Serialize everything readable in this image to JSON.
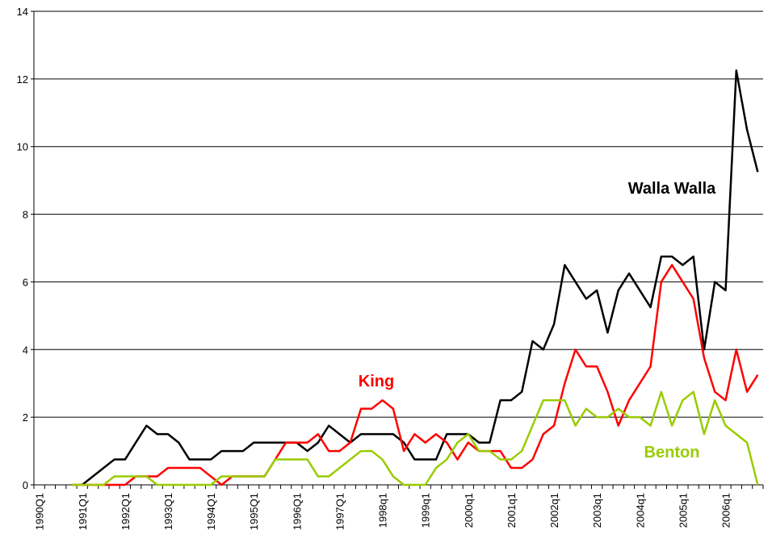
{
  "chart_data": {
    "type": "line",
    "categories": [
      "1990Q1",
      null,
      null,
      null,
      "1991Q1",
      null,
      null,
      null,
      "1992Q1",
      null,
      null,
      null,
      "1993Q1",
      null,
      null,
      null,
      "1994Q1",
      null,
      null,
      null,
      "1995Q1",
      null,
      null,
      null,
      "1996Q1",
      null,
      null,
      null,
      "1997Q1",
      null,
      null,
      null,
      "1998q1",
      null,
      null,
      null,
      "1999q1",
      null,
      null,
      null,
      "2000q1",
      null,
      null,
      null,
      "2001q1",
      null,
      null,
      null,
      "2002q1",
      null,
      null,
      null,
      "2003q1",
      null,
      null,
      null,
      "2004q1",
      null,
      null,
      null,
      "2005q1",
      null,
      null,
      null,
      "2006q1",
      null,
      null,
      null
    ],
    "series": [
      {
        "name": "Walla Walla",
        "color": "#000000",
        "values": [
          null,
          null,
          null,
          null,
          0,
          0.25,
          0.5,
          0.75,
          0.75,
          1.25,
          1.75,
          1.5,
          1.5,
          1.25,
          0.75,
          0.75,
          0.75,
          1.0,
          1.0,
          1.0,
          1.25,
          1.25,
          1.25,
          1.25,
          1.25,
          1.0,
          1.25,
          1.75,
          1.5,
          1.25,
          1.5,
          1.5,
          1.5,
          1.5,
          1.25,
          0.75,
          0.75,
          0.75,
          1.5,
          1.5,
          1.5,
          1.25,
          1.25,
          2.5,
          2.5,
          2.75,
          4.25,
          4.0,
          4.75,
          6.5,
          6.0,
          5.5,
          5.75,
          4.5,
          5.75,
          6.25,
          5.75,
          5.25,
          6.75,
          6.75,
          6.5,
          6.75,
          4.0,
          6.0,
          5.75,
          12.25,
          10.5,
          9.25
        ]
      },
      {
        "name": "King",
        "color": "#ff0000",
        "values": [
          null,
          null,
          null,
          0,
          0,
          0,
          0,
          0,
          0,
          0.25,
          0.25,
          0.25,
          0.5,
          0.5,
          0.5,
          0.5,
          0.25,
          0,
          0.25,
          0.25,
          0.25,
          0.25,
          0.75,
          1.25,
          1.25,
          1.25,
          1.5,
          1.0,
          1.0,
          1.25,
          2.25,
          2.25,
          2.5,
          2.25,
          1.0,
          1.5,
          1.25,
          1.5,
          1.25,
          0.75,
          1.25,
          1.0,
          1.0,
          1.0,
          0.5,
          0.5,
          0.75,
          1.5,
          1.75,
          3.0,
          4.0,
          3.5,
          3.5,
          2.75,
          1.75,
          2.5,
          3.0,
          3.5,
          6.0,
          6.5,
          6.0,
          5.5,
          3.75,
          2.75,
          2.5,
          4.0,
          2.75,
          3.25
        ]
      },
      {
        "name": "Benton",
        "color": "#99cc00",
        "values": [
          null,
          null,
          null,
          0,
          0,
          0,
          0,
          0.25,
          0.25,
          0.25,
          0.25,
          0,
          0,
          0,
          0,
          0,
          0,
          0.25,
          0.25,
          0.25,
          0.25,
          0.25,
          0.75,
          0.75,
          0.75,
          0.75,
          0.25,
          0.25,
          0.5,
          0.75,
          1.0,
          1.0,
          0.75,
          0.25,
          0,
          0,
          0,
          0.5,
          0.75,
          1.25,
          1.5,
          1.0,
          1.0,
          0.75,
          0.75,
          1.0,
          1.75,
          2.5,
          2.5,
          2.5,
          1.75,
          2.25,
          2.0,
          2.0,
          2.25,
          2.0,
          2.0,
          1.75,
          2.75,
          1.75,
          2.5,
          2.75,
          1.5,
          2.5,
          1.75,
          1.5,
          1.25,
          0
        ]
      }
    ],
    "ylim": [
      0,
      14
    ],
    "yticks": [
      0,
      2,
      4,
      6,
      8,
      10,
      12,
      14
    ],
    "grid": true
  }
}
